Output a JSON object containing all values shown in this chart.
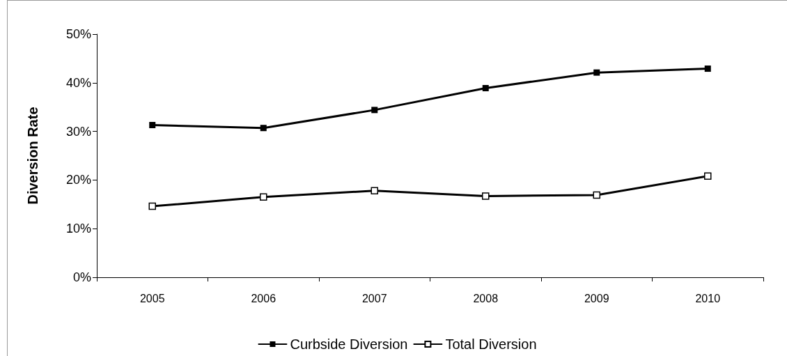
{
  "chart_data": {
    "type": "line",
    "ylabel": "Diversion Rate",
    "categories": [
      "2005",
      "2006",
      "2007",
      "2008",
      "2009",
      "2010"
    ],
    "series": [
      {
        "name": "Curbside Diversion",
        "color": "#000000",
        "marker": "square",
        "values": [
          31.3,
          30.7,
          34.4,
          38.9,
          42.1,
          42.9
        ]
      },
      {
        "name": "Total Diversion",
        "color": "#000000",
        "marker": "square",
        "values": [
          14.6,
          16.5,
          17.8,
          16.7,
          16.9,
          20.8
        ]
      }
    ],
    "ylim": [
      0,
      50
    ],
    "yticks": [
      {
        "value": 0,
        "label": "0%"
      },
      {
        "value": 10,
        "label": "10%"
      },
      {
        "value": 20,
        "label": "20%"
      },
      {
        "value": 30,
        "label": "30%"
      },
      {
        "value": 40,
        "label": "40%"
      },
      {
        "value": 50,
        "label": "50%"
      }
    ],
    "grid": false,
    "legend": "bottom",
    "line_style": "solid"
  }
}
